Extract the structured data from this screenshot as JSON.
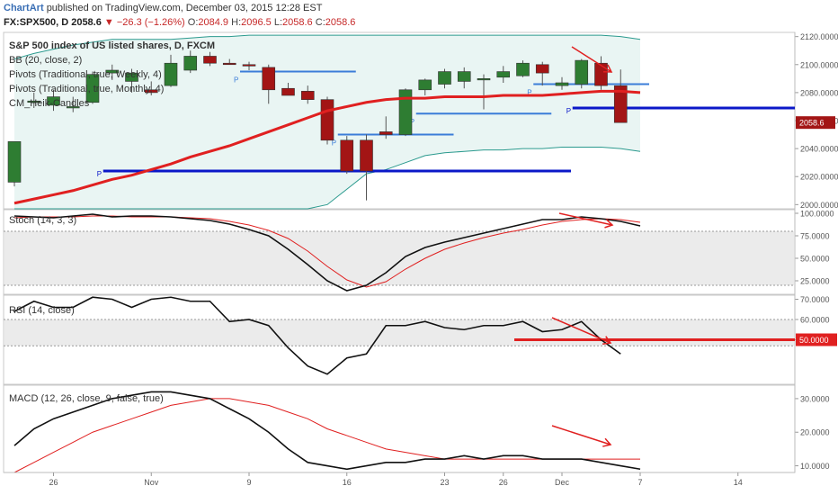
{
  "header": {
    "brand": "ChartArt",
    "published": "published on TradingView.com, December 03, 2015 12:28 EST",
    "symbol": "FX:SPX500, D",
    "last": "2058.6",
    "change": "−26.3 (−1.26%)",
    "o_label": "O:",
    "o_value": "2084.9",
    "h_label": "H:",
    "h_value": "2096.5",
    "l_label": "L:",
    "l_value": "2058.6",
    "c_label": "C:",
    "c_value": "2058.6"
  },
  "colors": {
    "bull": "#2e7d32",
    "bear": "#a31515",
    "bb_mid": "#e02020",
    "bb_band": "#2b9a8e",
    "weekly_pivot": "#3b7dd8",
    "monthly_pivot": "#0b18c8",
    "indicator": "#111111",
    "signal": "#e02020",
    "arrow": "#e02020",
    "band_fill": "#ebebeb"
  },
  "chart_data": [
    {
      "type": "candlestick",
      "title": "S&P 500 index of US listed shares, D, FXCM",
      "legend": [
        "BB (20, close, 2)",
        "Pivots (Traditional, true, Weekly, 4)",
        "Pivots (Traditional, true, Monthly, 4)",
        "CM_Heik-Candles"
      ],
      "ylim": [
        1997,
        2123
      ],
      "yticks": [
        2000.0,
        2020.0,
        2040.0,
        2060.0,
        2080.0,
        2100.0,
        2120.0
      ],
      "last_price_label": "2058.6",
      "pivot_marker": "P",
      "candles": [
        {
          "i": 0,
          "o": 2016,
          "h": 2045,
          "l": 2013,
          "c": 2045
        },
        {
          "i": 1,
          "o": 2074,
          "h": 2080,
          "l": 2069,
          "c": 2074
        },
        {
          "i": 2,
          "o": 2071,
          "h": 2082,
          "l": 2067,
          "c": 2077
        },
        {
          "i": 3,
          "o": 2070,
          "h": 2077,
          "l": 2066,
          "c": 2070
        },
        {
          "i": 4,
          "o": 2073,
          "h": 2095,
          "l": 2072,
          "c": 2093
        },
        {
          "i": 5,
          "o": 2094,
          "h": 2100,
          "l": 2089,
          "c": 2096
        },
        {
          "i": 6,
          "o": 2088,
          "h": 2097,
          "l": 2080,
          "c": 2094
        },
        {
          "i": 7,
          "o": 2082,
          "h": 2088,
          "l": 2078,
          "c": 2080
        },
        {
          "i": 8,
          "o": 2085,
          "h": 2107,
          "l": 2084,
          "c": 2101
        },
        {
          "i": 9,
          "o": 2096,
          "h": 2110,
          "l": 2094,
          "c": 2106
        },
        {
          "i": 10,
          "o": 2106,
          "h": 2109,
          "l": 2099,
          "c": 2101
        },
        {
          "i": 11,
          "o": 2101,
          "h": 2104,
          "l": 2100,
          "c": 2100
        },
        {
          "i": 12,
          "o": 2100,
          "h": 2102,
          "l": 2096,
          "c": 2099
        },
        {
          "i": 13,
          "o": 2098,
          "h": 2100,
          "l": 2072,
          "c": 2082
        },
        {
          "i": 14,
          "o": 2083,
          "h": 2087,
          "l": 2078,
          "c": 2078
        },
        {
          "i": 15,
          "o": 2081,
          "h": 2085,
          "l": 2072,
          "c": 2075
        },
        {
          "i": 16,
          "o": 2075,
          "h": 2077,
          "l": 2043,
          "c": 2046
        },
        {
          "i": 17,
          "o": 2046,
          "h": 2049,
          "l": 2022,
          "c": 2024
        },
        {
          "i": 18,
          "o": 2046,
          "h": 2050,
          "l": 2003,
          "c": 2024
        },
        {
          "i": 19,
          "o": 2052,
          "h": 2063,
          "l": 2047,
          "c": 2050
        },
        {
          "i": 20,
          "o": 2050,
          "h": 2083,
          "l": 2049,
          "c": 2082
        },
        {
          "i": 21,
          "o": 2082,
          "h": 2090,
          "l": 2078,
          "c": 2089
        },
        {
          "i": 22,
          "o": 2086,
          "h": 2097,
          "l": 2083,
          "c": 2095
        },
        {
          "i": 23,
          "o": 2088,
          "h": 2098,
          "l": 2083,
          "c": 2095
        },
        {
          "i": 24,
          "o": 2090,
          "h": 2093,
          "l": 2068,
          "c": 2090
        },
        {
          "i": 25,
          "o": 2091,
          "h": 2099,
          "l": 2087,
          "c": 2095
        },
        {
          "i": 26,
          "o": 2092,
          "h": 2103,
          "l": 2091,
          "c": 2101
        },
        {
          "i": 27,
          "o": 2100,
          "h": 2102,
          "l": 2085,
          "c": 2094
        },
        {
          "i": 28,
          "o": 2085,
          "h": 2091,
          "l": 2082,
          "c": 2087
        },
        {
          "i": 29,
          "o": 2086,
          "h": 2104,
          "l": 2083,
          "c": 2103
        },
        {
          "i": 30,
          "o": 2101,
          "h": 2106,
          "l": 2082,
          "c": 2085
        },
        {
          "i": 31,
          "o": 2084.9,
          "h": 2096.5,
          "l": 2058.6,
          "c": 2058.6
        }
      ],
      "bb_basis": [
        2001,
        2004,
        2007,
        2010,
        2014,
        2018,
        2021,
        2025,
        2029,
        2034,
        2038,
        2042,
        2047,
        2052,
        2057,
        2062,
        2067,
        2070,
        2073,
        2075,
        2076,
        2076,
        2077,
        2077,
        2077,
        2078,
        2078,
        2078,
        2079,
        2080,
        2081,
        2081,
        2080
      ],
      "bb_upper": [
        2104,
        2108,
        2111,
        2114,
        2116,
        2118,
        2118,
        2118,
        2118,
        2119,
        2120,
        2120,
        2121,
        2121,
        2121,
        2121,
        2121,
        2121,
        2121,
        2121,
        2121,
        2121,
        2121,
        2121,
        2121,
        2121,
        2121,
        2121,
        2121,
        2121,
        2121,
        2120,
        2118
      ],
      "bb_lower": [
        1996,
        1996,
        1996,
        1996,
        1996,
        1996,
        1996,
        1996,
        1996,
        1996,
        1996,
        1996,
        1996,
        1996,
        1996,
        1996,
        2000,
        2011,
        2022,
        2025,
        2030,
        2035,
        2037,
        2038,
        2039,
        2039,
        2040,
        2040,
        2041,
        2041,
        2041,
        2040,
        2038
      ],
      "weekly_pivots": [
        {
          "from": 12,
          "to": 17,
          "value": 2095
        },
        {
          "from": 17,
          "to": 22,
          "value": 2050
        },
        {
          "from": 21,
          "to": 27,
          "value": 2065
        },
        {
          "from": 27,
          "to": 32,
          "value": 2086
        }
      ],
      "monthly_pivots": [
        {
          "from": 5,
          "to": 28,
          "value": 2024
        },
        {
          "from": 29,
          "to": 40,
          "value": 2069
        }
      ]
    },
    {
      "type": "line",
      "title": "Stoch (14, 3, 3)",
      "ylim": [
        10,
        104
      ],
      "yticks": [
        25.0,
        50.0,
        75.0,
        100.0
      ],
      "band": [
        20,
        80
      ],
      "series": [
        {
          "values": [
            97,
            96,
            95,
            97,
            99,
            96,
            97,
            97,
            96,
            94,
            92,
            88,
            82,
            75,
            60,
            43,
            25,
            14,
            20,
            34,
            52,
            62,
            68,
            73,
            78,
            83,
            88,
            93,
            93,
            96,
            94,
            91,
            86
          ]
        },
        {
          "values": [
            95,
            96,
            96,
            96,
            97,
            97,
            96,
            96,
            96,
            95,
            94,
            91,
            87,
            81,
            72,
            58,
            41,
            26,
            18,
            24,
            38,
            50,
            60,
            67,
            73,
            78,
            82,
            87,
            91,
            93,
            94,
            93,
            90
          ]
        }
      ]
    },
    {
      "type": "line",
      "title": "RSI (14, close)",
      "ylim": [
        28,
        72
      ],
      "yticks": [
        50.0,
        60.0,
        70.0
      ],
      "band": [
        47,
        60
      ],
      "highlight_level": {
        "label": "50.0000",
        "value": 50
      },
      "series": [
        {
          "values": [
            64,
            69,
            66,
            66,
            71,
            70,
            66,
            70,
            71,
            69,
            69,
            59,
            60,
            57,
            46,
            37,
            33,
            41,
            43,
            57,
            57,
            59,
            56,
            55,
            57,
            57,
            59,
            54,
            55,
            59,
            50,
            43
          ]
        }
      ]
    },
    {
      "type": "line",
      "title": "MACD (12, 26, close, 9, false, true)",
      "ylim": [
        8,
        34
      ],
      "yticks": [
        10.0,
        20.0,
        30.0
      ],
      "series": [
        {
          "values": [
            16,
            21,
            24,
            26,
            28,
            30,
            31,
            32,
            32,
            31,
            30,
            27,
            24,
            20,
            15,
            11,
            10,
            9,
            10,
            11,
            11,
            12,
            12,
            13,
            12,
            13,
            13,
            12,
            12,
            12,
            11,
            10,
            9
          ]
        },
        {
          "values": [
            8,
            11,
            14,
            17,
            20,
            22,
            24,
            26,
            28,
            29,
            30,
            30,
            29,
            28,
            26,
            24,
            21,
            19,
            17,
            15,
            14,
            13,
            12,
            12,
            12,
            12,
            12,
            12,
            12,
            12,
            12,
            12,
            12
          ]
        }
      ]
    },
    {
      "type": "x_axis",
      "labels": [
        {
          "i": 2,
          "text": "26"
        },
        {
          "i": 7,
          "text": "Nov"
        },
        {
          "i": 12,
          "text": "9"
        },
        {
          "i": 17,
          "text": "16"
        },
        {
          "i": 22,
          "text": "23"
        },
        {
          "i": 25,
          "text": "26"
        },
        {
          "i": 28,
          "text": "Dec"
        },
        {
          "i": 32,
          "text": "7"
        },
        {
          "i": 37,
          "text": "14"
        }
      ]
    }
  ]
}
